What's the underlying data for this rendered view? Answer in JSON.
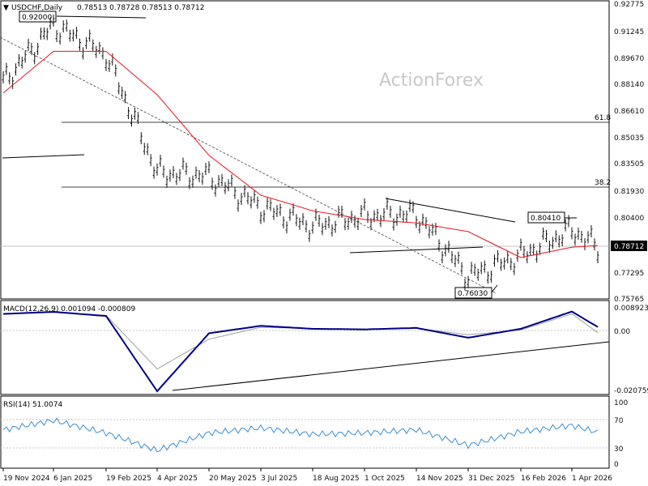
{
  "header": {
    "symbol": "USDCHF,Daily",
    "ohlc": "0.78513 0.78728 0.78513 0.78712"
  },
  "watermark": "ActionForex",
  "colors": {
    "ma_line": "#e8141e",
    "macd_line": "#000088",
    "signal_line": "#a0a0a0",
    "rsi_line": "#3a8fd0",
    "price_bars": "#111111"
  },
  "chart_data": [
    {
      "type": "line",
      "title": "USDCHF,Daily",
      "subtitle": "0.78513 0.78728 0.78513 0.78712",
      "xlabel": "",
      "ylabel": "",
      "x_ticks": [
        "19 Nov 2024",
        "6 Jan 2025",
        "19 Feb 2025",
        "4 Apr 2025",
        "20 May 2025",
        "3 Jul 2025",
        "18 Aug 2025",
        "1 Oct 2025",
        "14 Nov 2025",
        "31 Dec 2025",
        "16 Feb 2026",
        "1 Apr 2026"
      ],
      "y_ticks": [
        "0.92775",
        "0.91245",
        "0.89670",
        "0.88140",
        "0.86610",
        "0.85035",
        "0.83505",
        "0.81930",
        "0.80400",
        "0.78712",
        "0.77295",
        "0.75765"
      ],
      "ylim": [
        0.75765,
        0.92775
      ],
      "grid": false,
      "series": [
        {
          "kind": "bars",
          "x": [
            "19 Nov 2024",
            "6 Jan 2025",
            "19 Feb 2025",
            "4 Apr 2025",
            "20 May 2025",
            "3 Jul 2025",
            "18 Aug 2025",
            "1 Oct 2025",
            "14 Nov 2025",
            "31 Dec 2025",
            "16 Feb 2026",
            "1 Apr 2026",
            "15 Apr 2026"
          ],
          "values": [
            0.882,
            0.915,
            0.898,
            0.83,
            0.828,
            0.81,
            0.799,
            0.805,
            0.806,
            0.77,
            0.782,
            0.797,
            0.787
          ]
        },
        {
          "kind": "moving_average",
          "x": [
            "19 Nov 2024",
            "6 Jan 2025",
            "19 Feb 2025",
            "4 Apr 2025",
            "20 May 2025",
            "3 Jul 2025",
            "18 Aug 2025",
            "1 Oct 2025",
            "14 Nov 2025",
            "31 Dec 2025",
            "16 Feb 2026",
            "1 Apr 2026",
            "15 Apr 2026"
          ],
          "values": [
            0.876,
            0.9,
            0.9,
            0.875,
            0.84,
            0.817,
            0.808,
            0.803,
            0.801,
            0.796,
            0.781,
            0.787,
            0.788
          ]
        }
      ],
      "annotations": [
        {
          "label": "0.92000",
          "value": 0.92,
          "type": "boxed-level"
        },
        {
          "label": "0.80410",
          "value": 0.8041,
          "type": "boxed-level"
        },
        {
          "label": "0.76030",
          "value": 0.7603,
          "type": "boxed-level"
        },
        {
          "label": "61.8",
          "value": 0.859,
          "type": "fibonacci"
        },
        {
          "label": "38.2",
          "value": 0.822,
          "type": "fibonacci"
        },
        {
          "label": "0.78712",
          "value": 0.78712,
          "type": "current-price"
        }
      ]
    },
    {
      "type": "line",
      "title": "MACD(12,26,9) 0.001094 -0.000809",
      "xlabel": "",
      "ylabel": "",
      "y_ticks": [
        "0.008923",
        "0.00",
        "-0.020759"
      ],
      "ylim": [
        -0.020759,
        0.008923
      ],
      "series": [
        {
          "kind": "macd",
          "x": [
            "19 Nov 2024",
            "6 Jan 2025",
            "19 Feb 2025",
            "4 Apr 2025",
            "20 May 2025",
            "3 Jul 2025",
            "18 Aug 2025",
            "1 Oct 2025",
            "14 Nov 2025",
            "31 Dec 2025",
            "16 Feb 2026",
            "1 Apr 2026",
            "15 Apr 2026"
          ],
          "values": [
            0.0055,
            0.0062,
            0.0048,
            -0.0205,
            -0.001,
            0.0015,
            0.0005,
            0.0003,
            0.0008,
            -0.0025,
            0.0005,
            0.0063,
            0.0011
          ]
        },
        {
          "kind": "signal",
          "x": [
            "19 Nov 2024",
            "6 Jan 2025",
            "19 Feb 2025",
            "4 Apr 2025",
            "20 May 2025",
            "3 Jul 2025",
            "18 Aug 2025",
            "1 Oct 2025",
            "14 Nov 2025",
            "31 Dec 2025",
            "16 Feb 2026",
            "1 Apr 2026",
            "15 Apr 2026"
          ],
          "values": [
            0.0055,
            0.006,
            0.005,
            -0.013,
            -0.003,
            0.001,
            0.0006,
            0.0004,
            0.0007,
            -0.0015,
            0.0001,
            0.0055,
            -0.0008
          ]
        }
      ]
    },
    {
      "type": "line",
      "title": "RSI(14) 51.0074",
      "xlabel": "",
      "ylabel": "",
      "y_ticks": [
        "100",
        "70",
        "30",
        "0"
      ],
      "ylim": [
        0,
        100
      ],
      "series": [
        {
          "kind": "rsi",
          "x": [
            "19 Nov 2024",
            "6 Jan 2025",
            "19 Feb 2025",
            "4 Apr 2025",
            "20 May 2025",
            "3 Jul 2025",
            "18 Aug 2025",
            "1 Oct 2025",
            "14 Nov 2025",
            "31 Dec 2025",
            "16 Feb 2026",
            "1 Apr 2026",
            "15 Apr 2026"
          ],
          "values": [
            55,
            70,
            50,
            22,
            50,
            58,
            48,
            50,
            55,
            30,
            52,
            62,
            51
          ]
        }
      ]
    }
  ]
}
